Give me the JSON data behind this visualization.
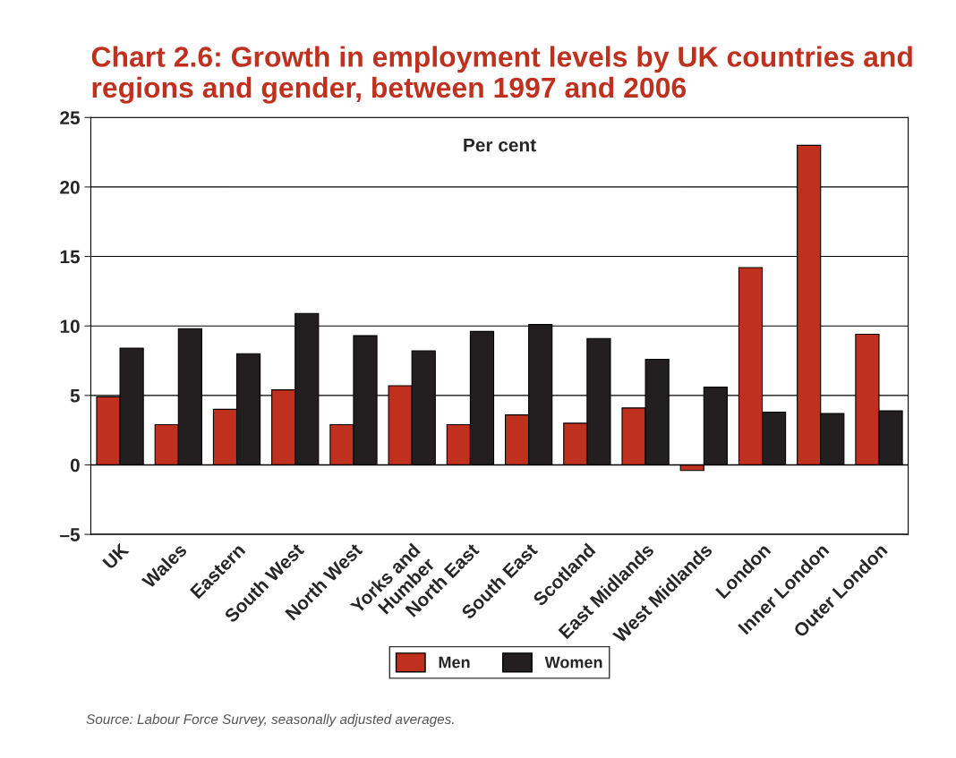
{
  "chart_data": {
    "type": "bar",
    "title": "Chart 2.6: Growth in employment levels by UK countries and regions and gender, between 1997 and 2006",
    "categories": [
      "UK",
      "Wales",
      "Eastern",
      "South West",
      "North West",
      "Yorks and\nHumber",
      "North East",
      "South East",
      "Scotland",
      "East Midlands",
      "West Midlands",
      "London",
      "Inner London",
      "Outer London"
    ],
    "series": [
      {
        "name": "Men",
        "color": "#c0301e",
        "values": [
          4.9,
          2.9,
          4.0,
          5.4,
          2.9,
          5.7,
          2.9,
          3.6,
          3.0,
          4.1,
          -0.4,
          14.2,
          23.0,
          9.4
        ]
      },
      {
        "name": "Women",
        "color": "#231f20",
        "values": [
          8.4,
          9.8,
          8.0,
          10.9,
          9.3,
          8.2,
          9.6,
          10.1,
          9.1,
          7.6,
          5.6,
          3.8,
          3.7,
          3.9
        ]
      }
    ],
    "ylim": [
      -5,
      25
    ],
    "yticks": [
      {
        "value": -5,
        "label": "–5"
      },
      0,
      5,
      10,
      15,
      20,
      25
    ],
    "grid": "y",
    "legend": "bottom",
    "annotations": [
      "Per cent",
      "Source: Labour Force Survey, seasonally adjusted averages."
    ]
  }
}
